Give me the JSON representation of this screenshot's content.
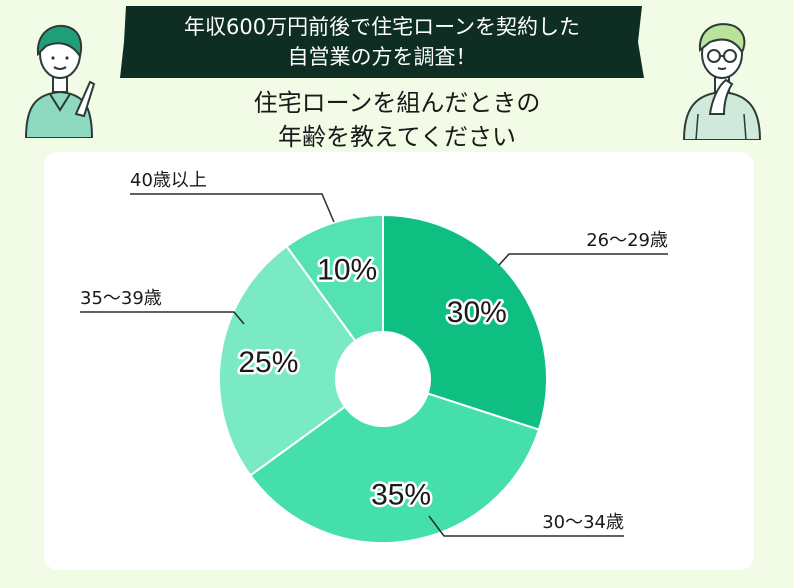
{
  "header": {
    "banner_line1": "年収600万円前後で住宅ローンを契約した",
    "banner_line2": "自営業の方を調査！",
    "question_line1": "住宅ローンを組んだときの",
    "question_line2": "年齢を教えてください"
  },
  "colors": {
    "banner_bg": "#0e2e24",
    "background": "#f1fbe6",
    "card_bg": "#ffffff"
  },
  "chart_data": {
    "type": "pie",
    "donut": true,
    "categories": [
      "26〜29歳",
      "30〜34歳",
      "35〜39歳",
      "40歳以上"
    ],
    "values": [
      30,
      35,
      25,
      10
    ],
    "percent_labels": [
      "30%",
      "35%",
      "25%",
      "10%"
    ],
    "colors": [
      "#0fbf82",
      "#45dfac",
      "#79eac4",
      "#54e2b2"
    ]
  }
}
